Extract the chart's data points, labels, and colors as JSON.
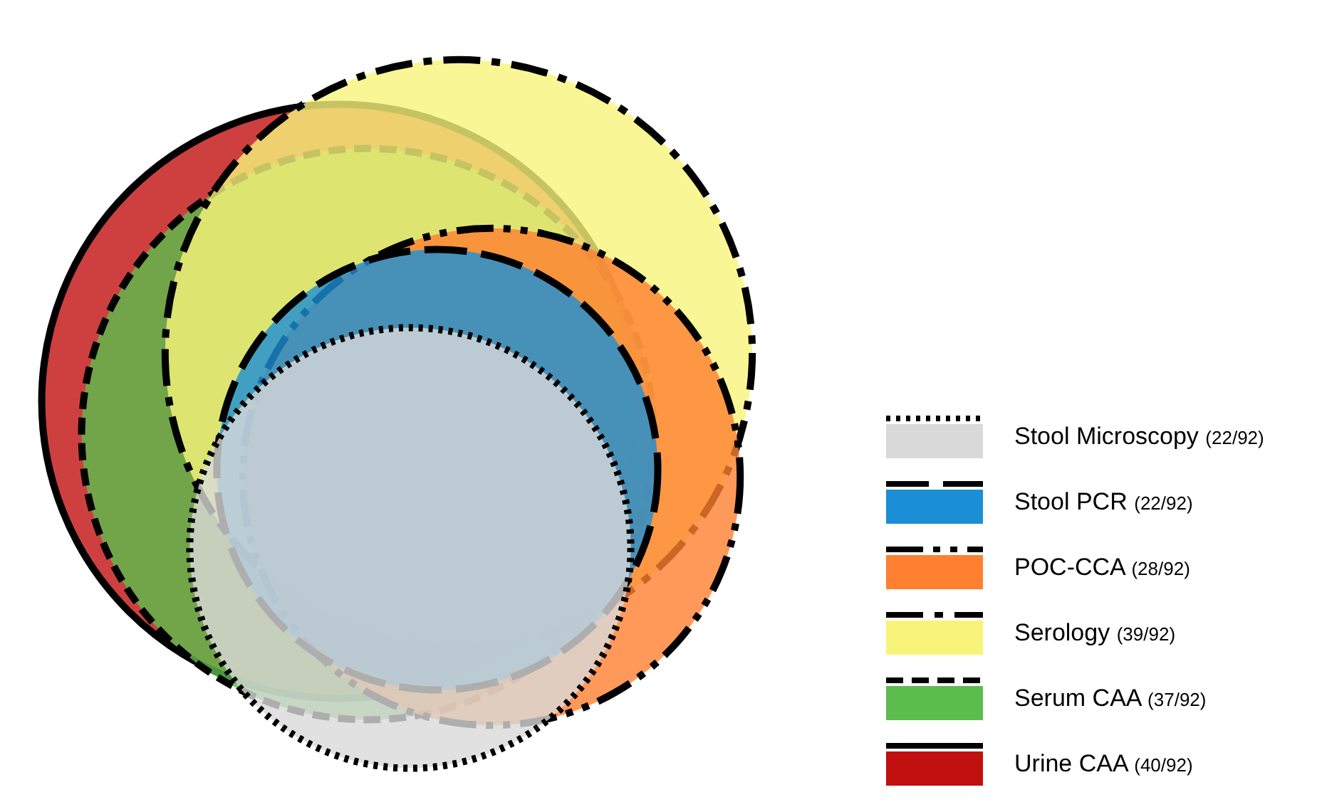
{
  "chart_data": {
    "type": "other",
    "legend": "right",
    "series": [
      {
        "name": "Stool Microscopy",
        "color": "#d9d9d9",
        "values": [
          22
        ],
        "value_labels": [
          "(22/92)"
        ],
        "line_style": "dotted"
      },
      {
        "name": "Stool PCR",
        "color": "#1a8fd6",
        "values": [
          22
        ],
        "value_labels": [
          "(22/92)"
        ],
        "line_style": "dashed"
      },
      {
        "name": "POC-CCA",
        "color": "#ff8030",
        "values": [
          28
        ],
        "value_labels": [
          "(28/92)"
        ],
        "line_style": "dashed"
      },
      {
        "name": "Serology",
        "color": "#f8f47a",
        "values": [
          39
        ],
        "value_labels": [
          "(39/92)"
        ],
        "line_style": "dashed"
      },
      {
        "name": "Serum CAA",
        "color": "#5bbd4c",
        "values": [
          37
        ],
        "value_labels": [
          "(37/92)"
        ],
        "line_style": "dashed"
      },
      {
        "name": "Urine CAA",
        "color": "#c0100f",
        "values": [
          40
        ],
        "value_labels": [
          "(40/92)"
        ],
        "line_style": "solid"
      }
    ]
  }
}
